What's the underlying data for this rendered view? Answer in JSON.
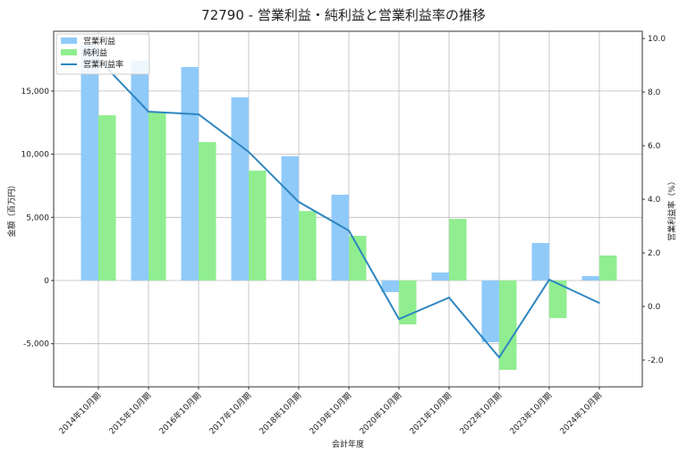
{
  "chart_data": {
    "type": "bar",
    "title": "72790 - 営業利益・純利益と営業利益率の推移",
    "xlabel": "会計年度",
    "ylabel": "金額（百万円）",
    "y2label": "営業利益率（%）",
    "categories": [
      "2014年10月期",
      "2015年10月期",
      "2016年10月期",
      "2017年10月期",
      "2018年10月期",
      "2019年10月期",
      "2020年10月期",
      "2021年10月期",
      "2022年10月期",
      "2023年10月期",
      "2024年10月期"
    ],
    "series": [
      {
        "name": "営業利益",
        "type": "bar",
        "axis": "left",
        "color": "#90CAF9",
        "values": [
          18600,
          17400,
          16900,
          14500,
          9830,
          6790,
          -920,
          640,
          -4880,
          2970,
          350
        ]
      },
      {
        "name": "純利益",
        "type": "bar",
        "axis": "left",
        "color": "#90EE90",
        "values": [
          13080,
          13300,
          10960,
          8700,
          5500,
          3540,
          -3470,
          4880,
          -7070,
          -2970,
          1980
        ]
      },
      {
        "name": "営業利益率",
        "type": "line",
        "axis": "right",
        "color": "#2E86C1",
        "values": [
          9.23,
          7.27,
          7.17,
          5.77,
          3.9,
          2.83,
          -0.47,
          0.33,
          -1.9,
          1.0,
          0.13
        ]
      }
    ],
    "ylim": [
      -8415,
      19730
    ],
    "y2lim": [
      -3.0,
      10.27
    ],
    "yticks": [
      -5000,
      0,
      5000,
      10000,
      15000
    ],
    "ytick_labels": [
      "-5,000",
      "0",
      "5,000",
      "10,000",
      "15,000"
    ],
    "y2ticks": [
      -2.0,
      0.0,
      2.0,
      4.0,
      6.0,
      8.0,
      10.0
    ],
    "y2tick_labels": [
      "-2.0",
      "0.0",
      "2.0",
      "4.0",
      "6.0",
      "8.0",
      "10.0"
    ],
    "grid": true,
    "legend": "top-left"
  }
}
